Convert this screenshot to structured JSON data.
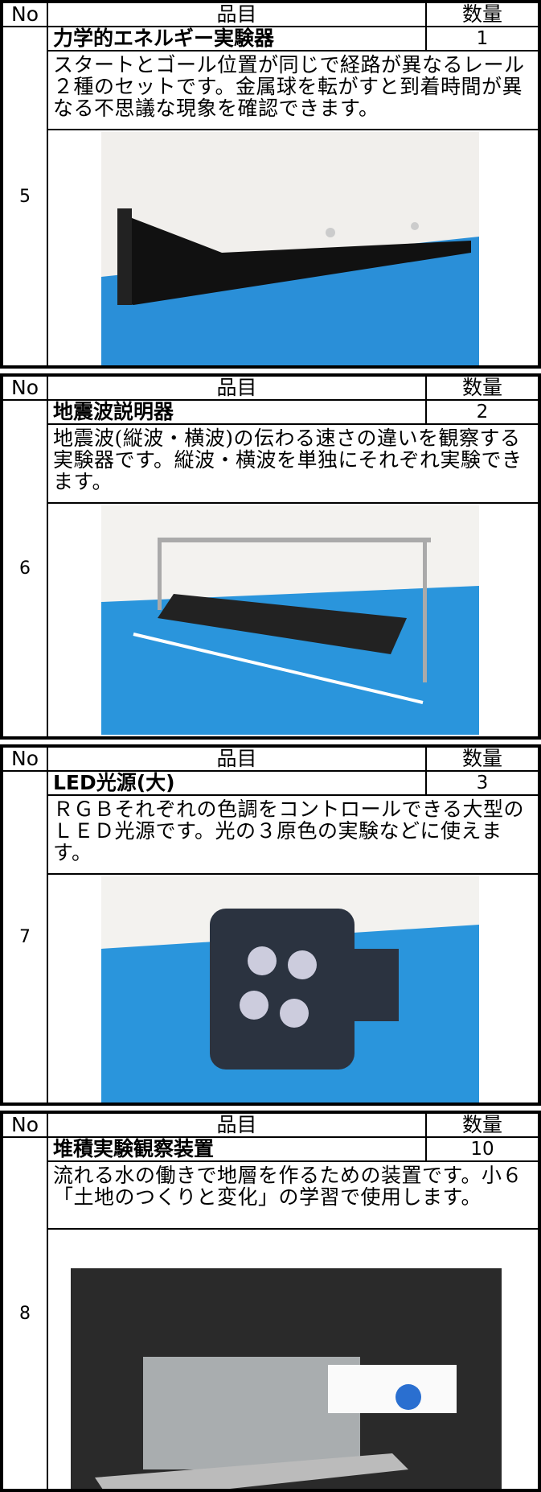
{
  "header": {
    "no": "No",
    "item": "品目",
    "quantity": "数量"
  },
  "blocks": [
    {
      "no": "5",
      "name": "力学的エネルギー実験器",
      "quantity": "1",
      "description": "スタートとゴール位置が同じで経路が異なるレール２種のセットです。金属球を転がすと到着時間が異なる不思議な現象を確認できます。"
    },
    {
      "no": "6",
      "name": "地震波説明器",
      "quantity": "2",
      "description": "地震波(縦波・横波)の伝わる速さの違いを観察する実験器です。縦波・横波を単独にそれぞれ実験できます。"
    },
    {
      "no": "7",
      "name": "LED光源(大)",
      "quantity": "3",
      "description": "ＲＧＢそれぞれの色調をコントロールできる大型のＬＥＤ光源です。光の３原色の実験などに使えます。"
    },
    {
      "no": "8",
      "name": "堆積実験観察装置",
      "quantity": "10",
      "description": "流れる水の働きで地層を作るための装置です。小６「土地のつくりと変化」の学習で使用します。"
    }
  ]
}
